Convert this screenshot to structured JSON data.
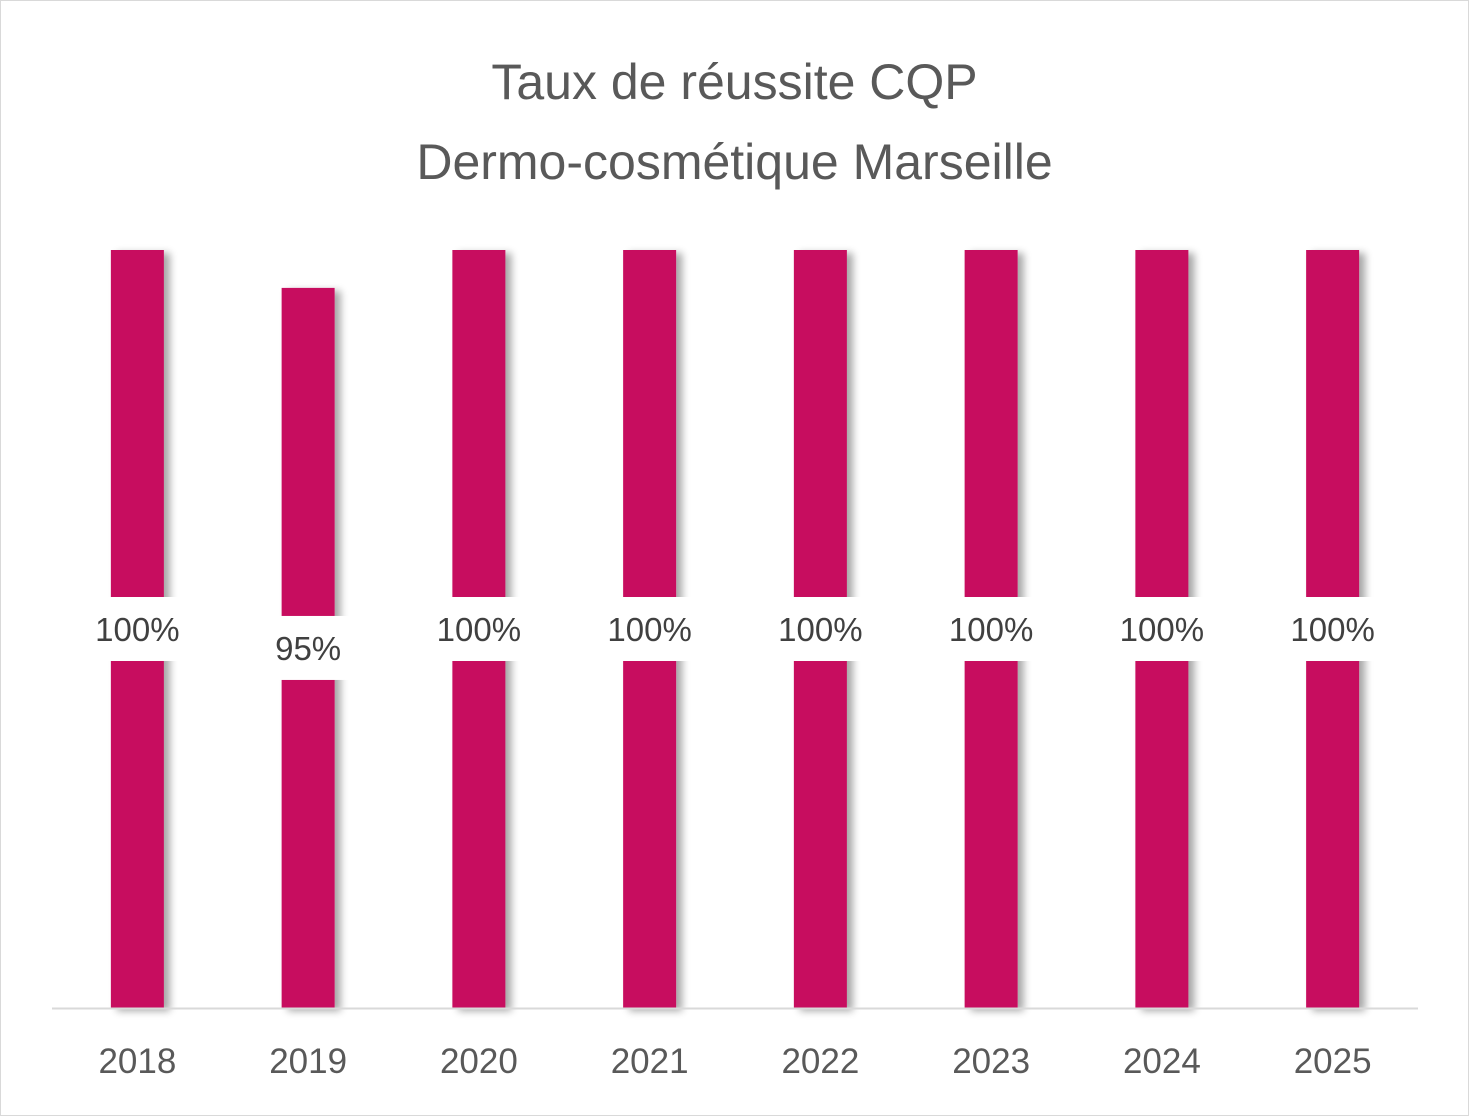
{
  "chart_data": {
    "type": "bar",
    "title": "Taux de réussite CQP",
    "subtitle": "Dermo-cosmétique Marseille",
    "categories": [
      "2018",
      "2019",
      "2020",
      "2021",
      "2022",
      "2023",
      "2024",
      "2025"
    ],
    "values": [
      100,
      95,
      100,
      100,
      100,
      100,
      100,
      100
    ],
    "data_labels": [
      "100%",
      "95%",
      "100%",
      "100%",
      "100%",
      "100%",
      "100%",
      "100%"
    ],
    "ylim": [
      0,
      100
    ],
    "grid": false,
    "legend": "none",
    "bar_color": "#c70a5f",
    "axis_color": "#d9d9d9"
  }
}
